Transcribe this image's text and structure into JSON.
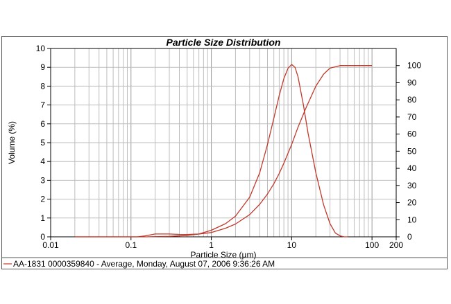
{
  "chart_data": {
    "type": "line",
    "title": "Particle Size Distribution",
    "xlabel": "Particle Size (µm)",
    "ylabel": "Volume (%)",
    "x_scale": "log",
    "xlim": [
      0.01,
      200
    ],
    "ylim": [
      0,
      10
    ],
    "y2lim": [
      0,
      110
    ],
    "x_tick_labels": [
      "0.01",
      "0.1",
      "1",
      "10",
      "100",
      "200"
    ],
    "y_tick_labels": [
      "0",
      "1",
      "2",
      "3",
      "4",
      "5",
      "6",
      "7",
      "8",
      "9",
      "10"
    ],
    "y2_tick_labels": [
      "0",
      "10",
      "20",
      "30",
      "40",
      "50",
      "60",
      "70",
      "80",
      "90",
      "100"
    ],
    "grid": true,
    "legend_position": "bottom",
    "color": "#c0392b",
    "series": [
      {
        "axis": "left",
        "x": [
          0.02,
          0.12,
          0.15,
          0.2,
          0.3,
          0.4,
          0.5,
          0.7,
          1,
          1.5,
          2,
          3,
          4,
          5,
          6,
          7,
          8,
          9,
          10,
          11,
          12,
          14,
          16,
          20,
          25,
          30,
          35,
          40,
          45,
          50
        ],
        "values": [
          0,
          0,
          0.05,
          0.15,
          0.15,
          0.13,
          0.12,
          0.15,
          0.35,
          0.7,
          1.1,
          2.1,
          3.4,
          4.9,
          6.3,
          7.5,
          8.4,
          8.95,
          9.15,
          9.0,
          8.5,
          7.0,
          5.5,
          3.4,
          1.7,
          0.7,
          0.2,
          0.05,
          0,
          0
        ]
      },
      {
        "axis": "right",
        "x": [
          0.02,
          0.15,
          0.3,
          0.5,
          1,
          1.5,
          2,
          3,
          4,
          5,
          6,
          7,
          8,
          10,
          12,
          15,
          20,
          25,
          30,
          40,
          50,
          100
        ],
        "values": [
          0,
          0,
          0.3,
          0.8,
          2.5,
          5,
          7.5,
          13,
          19,
          25,
          31,
          37,
          43,
          54,
          64,
          75,
          88,
          95,
          98.5,
          100,
          100,
          100
        ]
      }
    ],
    "legend": "AA-1831 0000359840 - Average, Monday, August 07, 2006 9:36:26 AM"
  }
}
